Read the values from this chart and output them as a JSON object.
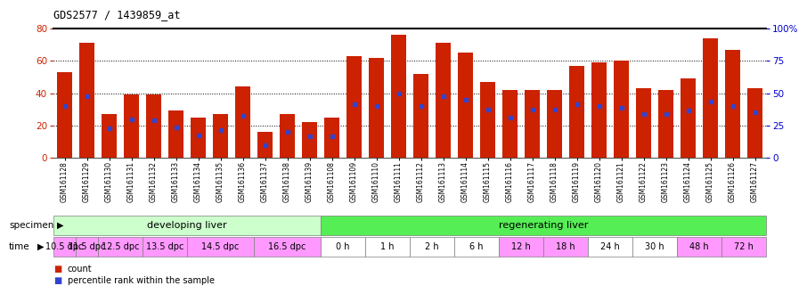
{
  "title": "GDS2577 / 1439859_at",
  "samples": [
    "GSM161128",
    "GSM161129",
    "GSM161130",
    "GSM161131",
    "GSM161132",
    "GSM161133",
    "GSM161134",
    "GSM161135",
    "GSM161136",
    "GSM161137",
    "GSM161138",
    "GSM161139",
    "GSM161108",
    "GSM161109",
    "GSM161110",
    "GSM161111",
    "GSM161112",
    "GSM161113",
    "GSM161114",
    "GSM161115",
    "GSM161116",
    "GSM161117",
    "GSM161118",
    "GSM161119",
    "GSM161120",
    "GSM161121",
    "GSM161122",
    "GSM161123",
    "GSM161124",
    "GSM161125",
    "GSM161126",
    "GSM161127"
  ],
  "count_values": [
    53,
    71,
    27,
    39,
    39,
    29,
    25,
    27,
    44,
    16,
    27,
    22,
    25,
    63,
    62,
    76,
    52,
    71,
    65,
    47,
    42,
    42,
    42,
    57,
    59,
    60,
    43,
    42,
    49,
    74,
    67,
    43
  ],
  "percentile_values": [
    32,
    38,
    18,
    24,
    23,
    19,
    14,
    17,
    26,
    8,
    16,
    13,
    13,
    33,
    32,
    40,
    32,
    38,
    36,
    30,
    25,
    30,
    30,
    33,
    32,
    31,
    27,
    27,
    29,
    35,
    32,
    28
  ],
  "ylim_left": [
    0,
    80
  ],
  "ylim_right": [
    0,
    100
  ],
  "yticks_left": [
    0,
    20,
    40,
    60,
    80
  ],
  "yticks_right": [
    0,
    25,
    50,
    75,
    100
  ],
  "ytick_labels_right": [
    "0",
    "25",
    "50",
    "75",
    "100%"
  ],
  "bar_color": "#cc2200",
  "percentile_color": "#3344cc",
  "background_color": "#ffffff",
  "grid_color": "#000000",
  "specimen_groups": [
    {
      "label": "developing liver",
      "start": 0,
      "end": 11,
      "color": "#ccffcc"
    },
    {
      "label": "regenerating liver",
      "start": 12,
      "end": 31,
      "color": "#55ee55"
    }
  ],
  "time_groups": [
    {
      "label": "10.5 dpc",
      "start": 0,
      "end": 0,
      "color": "#ff99ff"
    },
    {
      "label": "11.5 dpc",
      "start": 1,
      "end": 1,
      "color": "#ff99ff"
    },
    {
      "label": "12.5 dpc",
      "start": 2,
      "end": 3,
      "color": "#ff99ff"
    },
    {
      "label": "13.5 dpc",
      "start": 4,
      "end": 5,
      "color": "#ff99ff"
    },
    {
      "label": "14.5 dpc",
      "start": 6,
      "end": 8,
      "color": "#ff99ff"
    },
    {
      "label": "16.5 dpc",
      "start": 9,
      "end": 11,
      "color": "#ff99ff"
    },
    {
      "label": "0 h",
      "start": 12,
      "end": 13,
      "color": "#ffffff"
    },
    {
      "label": "1 h",
      "start": 14,
      "end": 15,
      "color": "#ffffff"
    },
    {
      "label": "2 h",
      "start": 16,
      "end": 17,
      "color": "#ffffff"
    },
    {
      "label": "6 h",
      "start": 18,
      "end": 19,
      "color": "#ffffff"
    },
    {
      "label": "12 h",
      "start": 20,
      "end": 21,
      "color": "#ff99ff"
    },
    {
      "label": "18 h",
      "start": 22,
      "end": 23,
      "color": "#ff99ff"
    },
    {
      "label": "24 h",
      "start": 24,
      "end": 25,
      "color": "#ffffff"
    },
    {
      "label": "30 h",
      "start": 26,
      "end": 27,
      "color": "#ffffff"
    },
    {
      "label": "48 h",
      "start": 28,
      "end": 29,
      "color": "#ff99ff"
    },
    {
      "label": "72 h",
      "start": 30,
      "end": 31,
      "color": "#ff99ff"
    }
  ],
  "legend_count_color": "#cc2200",
  "legend_percentile_color": "#3344cc",
  "axis_color_left": "#cc2200",
  "axis_color_right": "#0000cc"
}
